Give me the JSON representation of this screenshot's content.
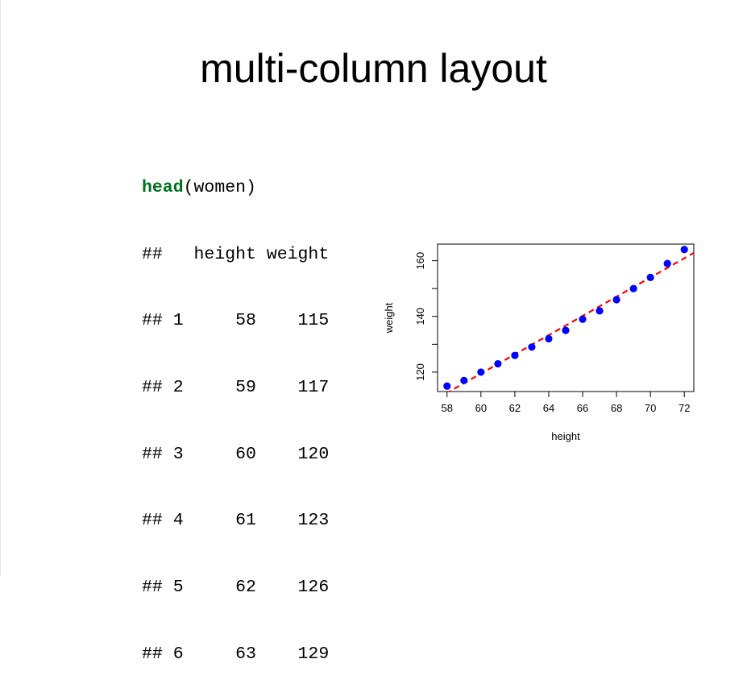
{
  "slide": {
    "title": "multi-column layout"
  },
  "code": {
    "call_fn": "head",
    "call_args": "(women)",
    "output_lines": [
      "##   height weight",
      "## 1     58    115",
      "## 2     59    117",
      "## 3     60    120",
      "## 4     61    123",
      "## 5     62    126",
      "## 6     63    129"
    ]
  },
  "chart_data": {
    "type": "scatter",
    "x": [
      58,
      59,
      60,
      61,
      62,
      63,
      64,
      65,
      66,
      67,
      68,
      69,
      70,
      71,
      72
    ],
    "y": [
      115,
      117,
      120,
      123,
      126,
      129,
      132,
      135,
      139,
      142,
      146,
      150,
      154,
      159,
      164
    ],
    "xlabel": "height",
    "ylabel": "weight",
    "xlim": [
      57.44,
      72.56
    ],
    "ylim": [
      113.04,
      165.96
    ],
    "xticks": [
      58,
      60,
      62,
      64,
      66,
      68,
      70,
      72
    ],
    "yticks": [
      120,
      130,
      140,
      150,
      160
    ],
    "ytick_labels": [
      120,
      140,
      160
    ],
    "point_color": "#0000ff",
    "fit_line": {
      "intercept": -87.5167,
      "slope": 3.45,
      "color": "#ff0000",
      "style": "dashed"
    },
    "grid": false
  }
}
